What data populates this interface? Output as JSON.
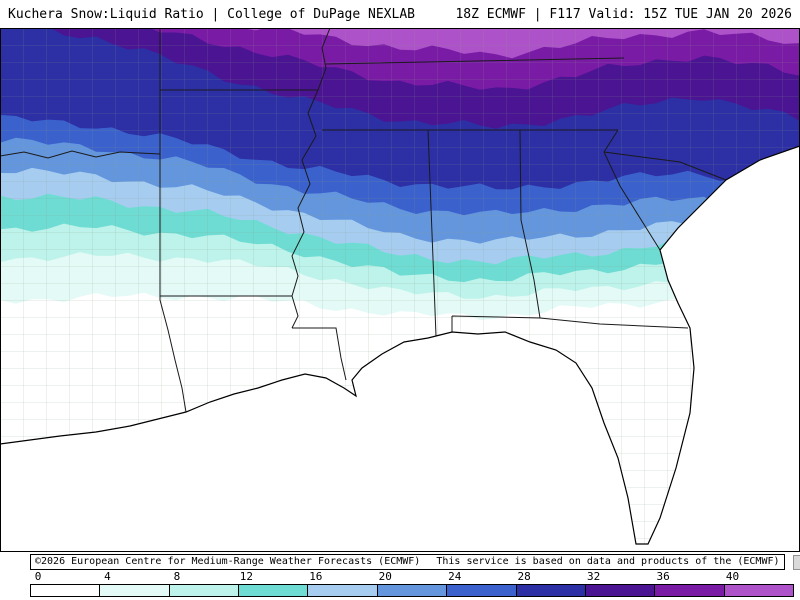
{
  "header": {
    "left": "Kuchera Snow:Liquid Ratio | College of DuPage NEXLAB",
    "right": "18Z ECMWF | F117 Valid: 15Z TUE JAN 20 2026"
  },
  "attribution": {
    "copyright": "©2026 European Centre for Medium-Range Weather Forecasts (ECMWF)",
    "service": "This service is based on data and products of the (ECMWF)"
  },
  "legend": {
    "ticks": [
      "0",
      "4",
      "8",
      "12",
      "16",
      "20",
      "24",
      "28",
      "32",
      "36",
      "40"
    ],
    "cell_colors": [
      "#ffffff",
      "#e4faf6",
      "#bdf3ea",
      "#6edcd2",
      "#a6cdf0",
      "#6496dd",
      "#3b62cc",
      "#2d2fa4",
      "#4a1492",
      "#7a1ba6",
      "#ad52c9"
    ]
  },
  "map": {
    "parameter": "Kuchera Snow:Liquid Ratio",
    "model": "ECMWF",
    "cycle": "18Z",
    "forecast_hour": "F117",
    "valid": "15Z TUE JAN 20 2026",
    "bands": [
      {
        "range": "0-4"
      },
      {
        "range": "4-8"
      },
      {
        "range": "8-12"
      },
      {
        "range": "12-16"
      },
      {
        "range": "16-20"
      },
      {
        "range": "20-24"
      },
      {
        "range": "24-28"
      },
      {
        "range": "28-32"
      },
      {
        "range": "32-36"
      },
      {
        "range": "36-40"
      },
      {
        "range": "40+"
      }
    ],
    "band_boundaries": [
      [
        272,
        269,
        268,
        275,
        287,
        288,
        278,
        270,
        277
      ],
      [
        230,
        228,
        230,
        244,
        265,
        268,
        260,
        250,
        260
      ],
      [
        200,
        200,
        207,
        224,
        247,
        252,
        242,
        230,
        242
      ],
      [
        168,
        172,
        184,
        204,
        228,
        234,
        224,
        212,
        224
      ],
      [
        142,
        148,
        162,
        184,
        208,
        214,
        204,
        194,
        207
      ],
      [
        112,
        120,
        137,
        162,
        180,
        187,
        177,
        170,
        187
      ],
      [
        90,
        98,
        117,
        140,
        154,
        162,
        152,
        144,
        167
      ],
      [
        -6,
        10,
        42,
        72,
        92,
        100,
        84,
        67,
        92
      ],
      [
        -8,
        -6,
        10,
        34,
        54,
        62,
        42,
        27,
        47
      ],
      [
        -9,
        -8,
        -6,
        5,
        20,
        27,
        12,
        2,
        17
      ]
    ]
  }
}
